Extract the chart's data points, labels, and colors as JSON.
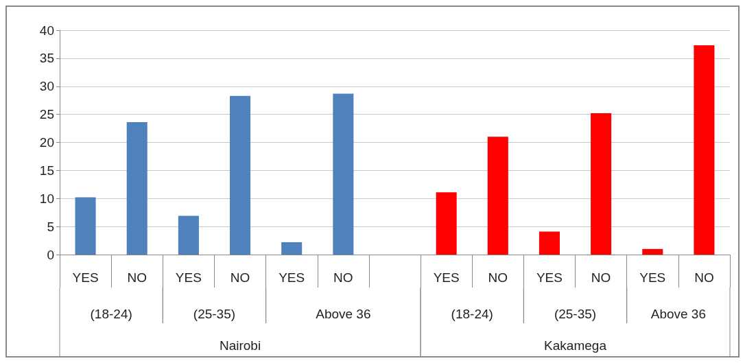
{
  "chart_data": {
    "type": "bar",
    "categories": [
      "YES",
      "NO",
      "YES",
      "NO",
      "YES",
      "NO",
      null,
      "YES",
      "NO",
      "YES",
      "NO",
      "YES",
      "NO"
    ],
    "values": [
      10.2,
      23.6,
      6.9,
      28.3,
      2.2,
      28.7,
      null,
      11.1,
      21.0,
      4.1,
      25.2,
      1.0,
      37.3
    ],
    "colors": [
      "#4f81bd",
      "#4f81bd",
      "#4f81bd",
      "#4f81bd",
      "#4f81bd",
      "#4f81bd",
      "#4f81bd",
      "#ff0000",
      "#ff0000",
      "#ff0000",
      "#ff0000",
      "#ff0000",
      "#ff0000"
    ],
    "annotations": [
      "(18-24)",
      "(25-35)",
      "Above 36",
      "(18-24)",
      "(25-35)",
      "Above 36",
      "Nairobi",
      "Kakamega"
    ],
    "ylim": [
      0,
      40
    ],
    "yticks": [
      0,
      5,
      10,
      15,
      20,
      25,
      30,
      35,
      40
    ],
    "grid": "y"
  }
}
